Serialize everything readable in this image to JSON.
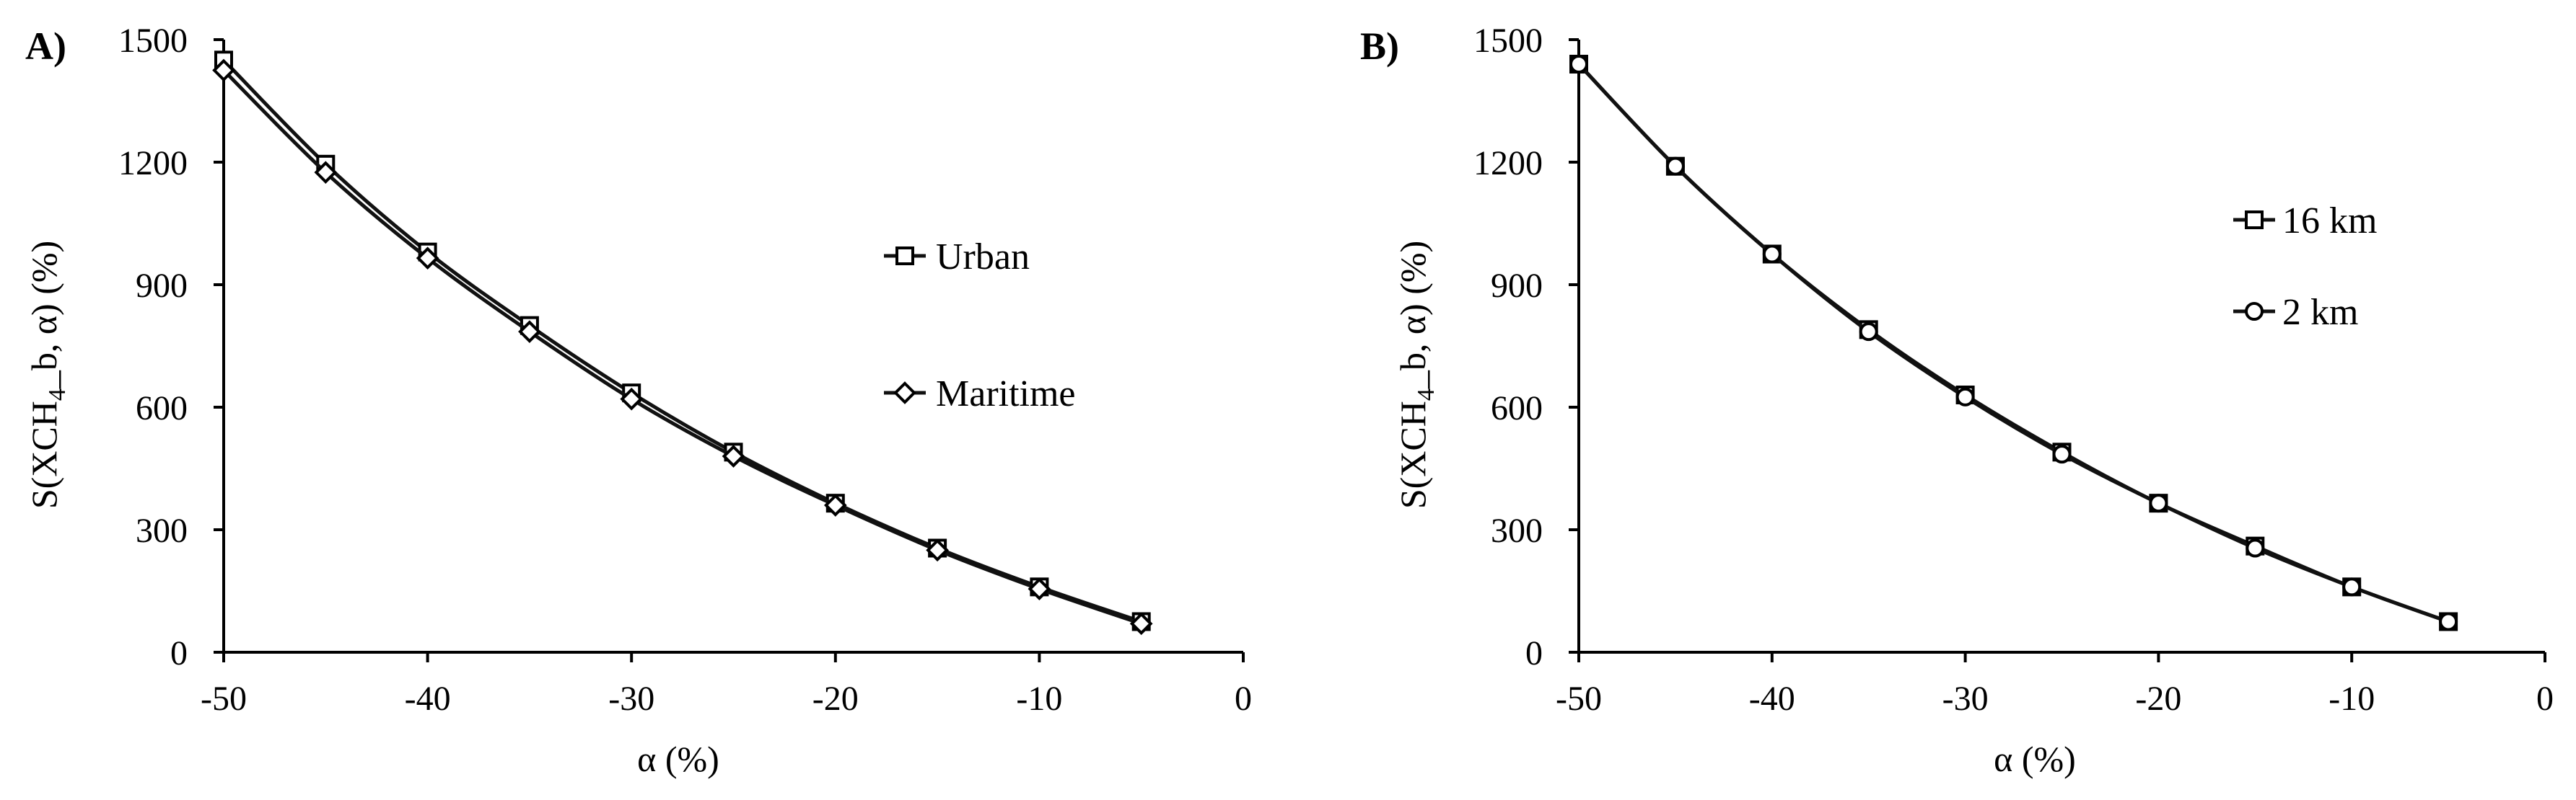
{
  "chart_data": [
    {
      "panel": "A)",
      "type": "line",
      "title": "",
      "xlabel": "α (%)",
      "ylabel": {
        "prefix": "S(XCH",
        "sub": "4",
        "suffix": "_b, α) (%)"
      },
      "xlim": [
        -50,
        0
      ],
      "ylim": [
        0,
        1500
      ],
      "x_ticks": [
        -50,
        -40,
        -30,
        -20,
        -10,
        0
      ],
      "y_ticks": [
        0,
        300,
        600,
        900,
        1200,
        1500
      ],
      "grid": false,
      "legend_position": "right-middle",
      "x": [
        -50,
        -45,
        -40,
        -35,
        -30,
        -25,
        -20,
        -15,
        -10,
        -5
      ],
      "series": [
        {
          "name": "Urban",
          "marker": "square",
          "values": [
            1450,
            1195,
            980,
            800,
            635,
            490,
            365,
            255,
            160,
            75
          ]
        },
        {
          "name": "Maritime",
          "marker": "diamond",
          "values": [
            1425,
            1175,
            965,
            785,
            620,
            480,
            360,
            250,
            155,
            70
          ]
        }
      ]
    },
    {
      "panel": "B)",
      "type": "line",
      "title": "",
      "xlabel": "α (%)",
      "ylabel": {
        "prefix": "S(XCH",
        "sub": "4",
        "suffix": "_b, α) (%)"
      },
      "xlim": [
        -50,
        0
      ],
      "ylim": [
        0,
        1500
      ],
      "x_ticks": [
        -50,
        -40,
        -30,
        -20,
        -10,
        0
      ],
      "y_ticks": [
        0,
        300,
        600,
        900,
        1200,
        1500
      ],
      "grid": false,
      "legend_position": "right-top",
      "x": [
        -50,
        -45,
        -40,
        -35,
        -30,
        -25,
        -20,
        -15,
        -10,
        -5
      ],
      "series": [
        {
          "name": "16 km",
          "marker": "square",
          "values": [
            1440,
            1190,
            975,
            790,
            630,
            490,
            365,
            260,
            160,
            75
          ]
        },
        {
          "name": "2 km",
          "marker": "circle",
          "values": [
            1440,
            1190,
            975,
            785,
            625,
            485,
            365,
            255,
            160,
            75
          ]
        }
      ]
    }
  ]
}
